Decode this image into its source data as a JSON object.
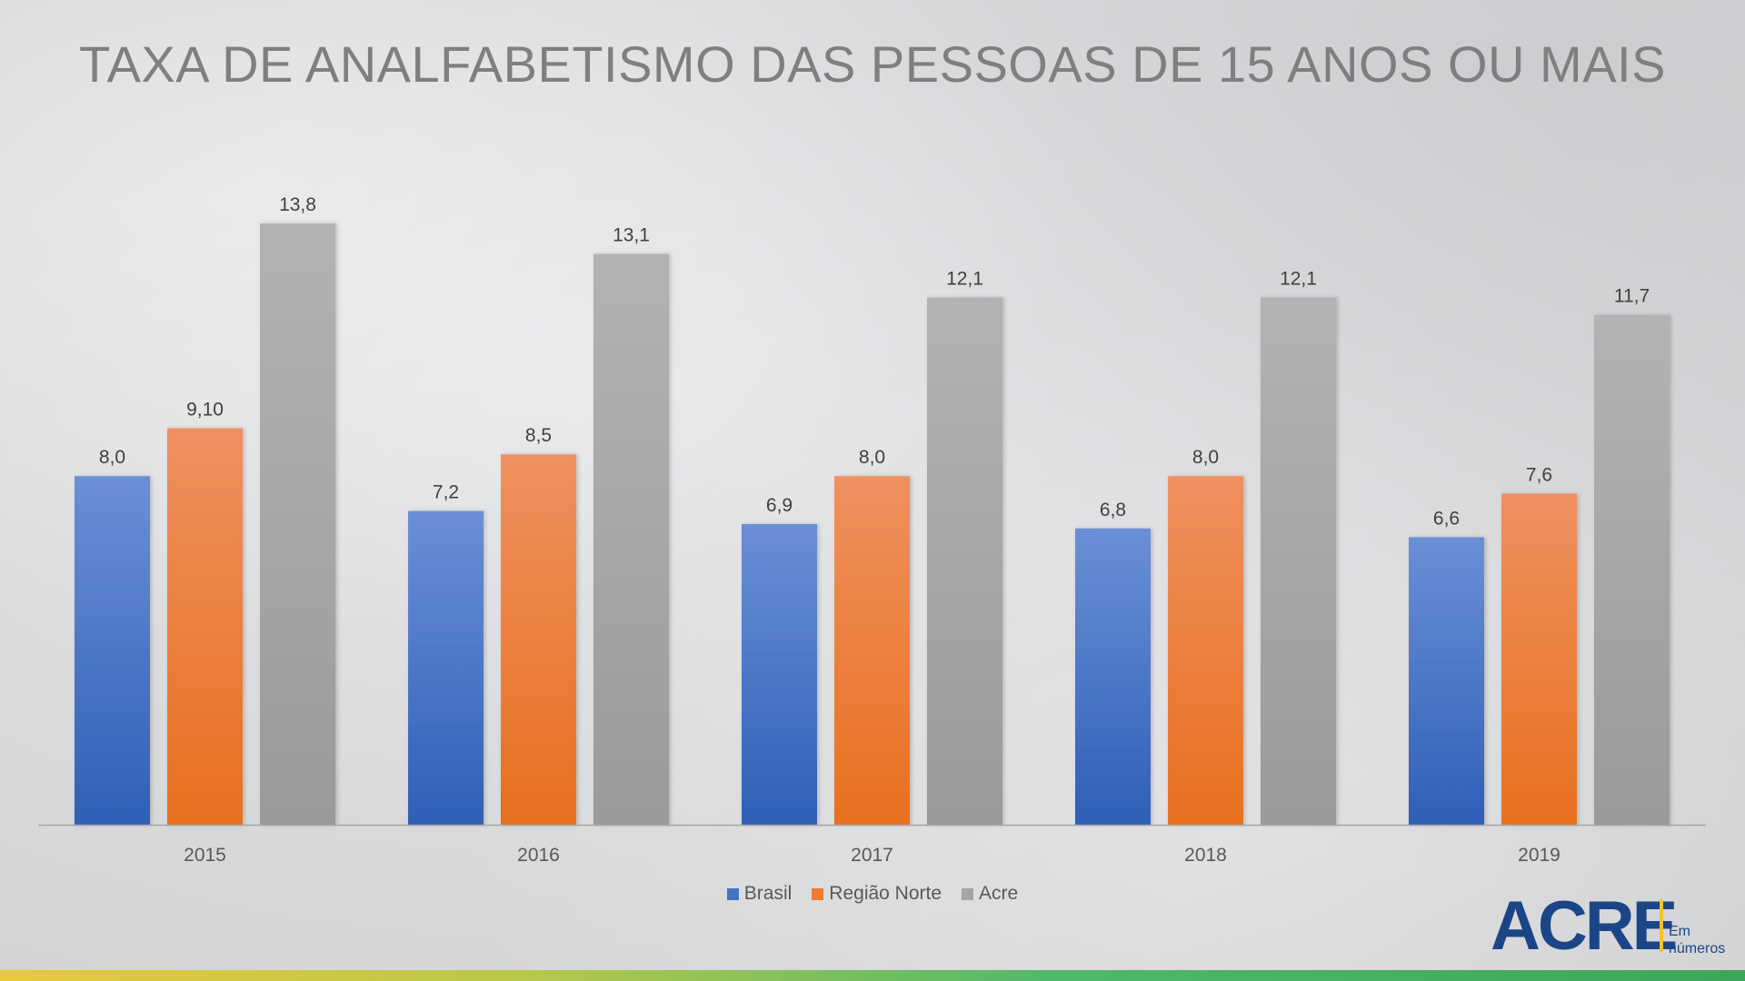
{
  "slide": {
    "title": "TAXA DE ANALFABETISMO DAS PESSOAS DE 15 ANOS OU MAIS",
    "logo_main": "ACRE",
    "logo_sub_1": "Em",
    "logo_sub_2": "números"
  },
  "colors": {
    "brasil": "#4472c4",
    "norte": "#ed7d31",
    "acre": "#a5a5a5",
    "axis": "#a6a6a6",
    "label": "#404040",
    "tick": "#595959"
  },
  "chart_data": {
    "type": "bar",
    "title": "TAXA DE ANALFABETISMO DAS PESSOAS DE 15 ANOS OU MAIS",
    "categories": [
      "2015",
      "2016",
      "2017",
      "2018",
      "2019"
    ],
    "series": [
      {
        "name": "Brasil",
        "values": [
          8.0,
          7.2,
          6.9,
          6.8,
          6.6
        ],
        "labels": [
          "8,0",
          "7,2",
          "6,9",
          "6,8",
          "6,6"
        ]
      },
      {
        "name": "Região Norte",
        "values": [
          9.1,
          8.5,
          8.0,
          8.0,
          7.6
        ],
        "labels": [
          "9,10",
          "8,5",
          "8,0",
          "8,0",
          "7,6"
        ]
      },
      {
        "name": "Acre",
        "values": [
          13.8,
          13.1,
          12.1,
          12.1,
          11.7
        ],
        "labels": [
          "13,8",
          "13,1",
          "12,1",
          "12,1",
          "11,7"
        ]
      }
    ],
    "xlabel": "",
    "ylabel": "",
    "ylim": [
      0,
      13.8
    ],
    "grid": false,
    "legend_position": "bottom-center"
  }
}
